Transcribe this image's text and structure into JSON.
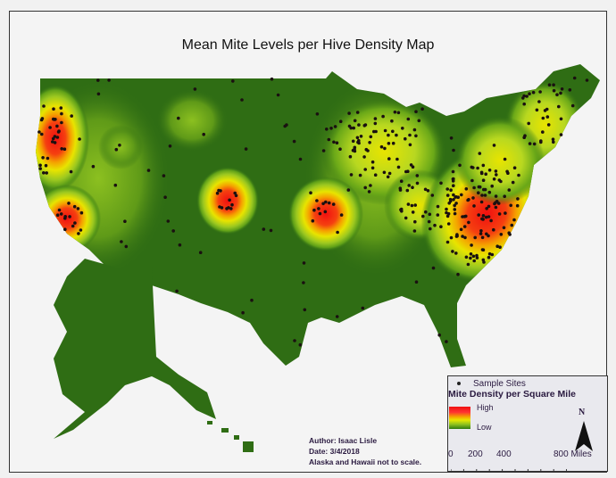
{
  "map": {
    "title": "Mean Mite Levels per Hive Density Map",
    "colors": {
      "land": "#2f6d14",
      "high": "#f01010",
      "mid": "#f5e000",
      "low": "#8cc020",
      "site": "#1a1010"
    },
    "hotspots_level": "high near Pacific Northwest, N. California, Colorado, Kansas City area, Mid-Atlantic"
  },
  "credits": {
    "author": "Author: Isaac Lisle",
    "date": "Date: 3/4/2018",
    "note": "Alaska and Hawaii not to scale."
  },
  "legend": {
    "sites_label": "Sample Sites",
    "title": "Mite Density per Square Mile",
    "high": "High",
    "low": "Low",
    "north": "N",
    "scale": [
      "0",
      "200",
      "400",
      "800 Miles"
    ]
  }
}
